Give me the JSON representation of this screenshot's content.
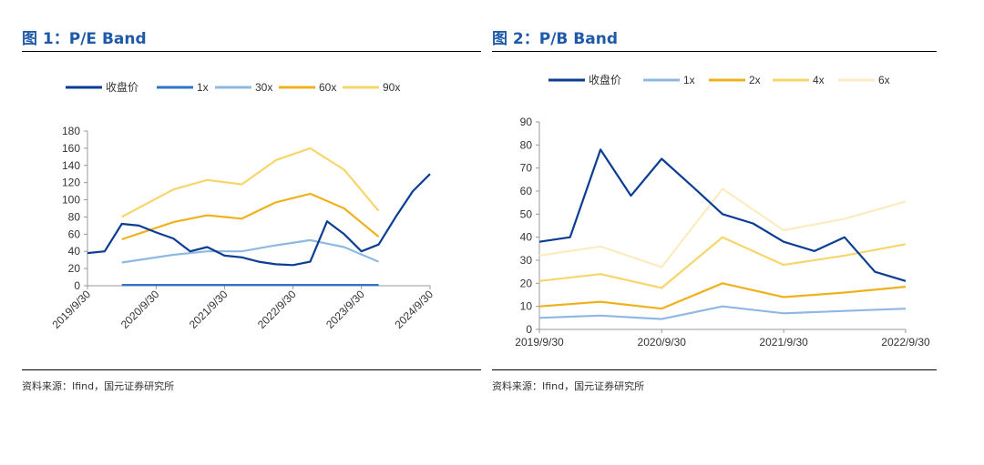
{
  "colors": {
    "title": "#1f5aa8",
    "close": "#0b3d91",
    "m1": "#2e75c4",
    "m2": "#f0b11e",
    "m30": "#8fb8e2",
    "m60": "#f0b11e",
    "m90": "#f7d56a",
    "pb4": "#f7d56a",
    "pb6": "#fbecc0"
  },
  "left": {
    "title": "图 1：P/E Band",
    "source": "资料来源：Ifind，国元证券研究所"
  },
  "right": {
    "title": "图 2：P/B Band",
    "source": "资料来源：Ifind，国元证券研究所"
  },
  "chart_data": [
    {
      "type": "line",
      "title": "P/E Band",
      "x_ticks": [
        "2019/9/30",
        "2020/9/30",
        "2021/9/30",
        "2022/9/30",
        "2023/9/30",
        "2024/9/30"
      ],
      "ylim": [
        0,
        180
      ],
      "y_ticks": [
        0,
        20,
        40,
        60,
        80,
        100,
        120,
        140,
        160,
        180
      ],
      "legend_position": "top",
      "series": [
        {
          "name": "收盘价",
          "x": [
            "2019/9/30",
            "2019/12/31",
            "2020/3/31",
            "2020/6/30",
            "2020/9/30",
            "2020/12/31",
            "2021/3/31",
            "2021/6/30",
            "2021/9/30",
            "2021/12/31",
            "2022/3/31",
            "2022/6/30",
            "2022/9/30",
            "2022/12/31",
            "2023/3/31",
            "2023/6/30",
            "2023/9/30",
            "2023/12/31",
            "2024/3/31",
            "2024/6/30",
            "2024/9/30"
          ],
          "values": [
            38,
            40,
            72,
            70,
            62,
            55,
            40,
            45,
            35,
            33,
            28,
            25,
            24,
            28,
            75,
            60,
            40,
            48,
            80,
            110,
            130
          ]
        },
        {
          "name": "1x",
          "x": [
            "2020/3/31",
            "2023/12/31"
          ],
          "values": [
            1,
            1
          ]
        },
        {
          "name": "30x",
          "x": [
            "2020/3/31",
            "2020/12/31",
            "2021/6/30",
            "2021/12/31",
            "2022/6/30",
            "2022/12/31",
            "2023/6/30",
            "2023/12/31"
          ],
          "values": [
            27,
            36,
            40,
            40,
            47,
            53,
            45,
            28
          ]
        },
        {
          "name": "60x",
          "x": [
            "2020/3/31",
            "2020/12/31",
            "2021/6/30",
            "2021/12/31",
            "2022/6/30",
            "2022/12/31",
            "2023/6/30",
            "2023/12/31"
          ],
          "values": [
            54,
            74,
            82,
            78,
            97,
            107,
            90,
            57
          ]
        },
        {
          "name": "90x",
          "x": [
            "2020/3/31",
            "2020/12/31",
            "2021/6/30",
            "2021/12/31",
            "2022/6/30",
            "2022/12/31",
            "2023/6/30",
            "2023/12/31"
          ],
          "values": [
            80,
            112,
            123,
            118,
            146,
            160,
            135,
            87
          ]
        }
      ]
    },
    {
      "type": "line",
      "title": "P/B Band",
      "x_ticks": [
        "2019/9/30",
        "2020/9/30",
        "2021/9/30",
        "2022/9/30"
      ],
      "ylim": [
        0,
        90
      ],
      "y_ticks": [
        0,
        10,
        20,
        30,
        40,
        50,
        60,
        70,
        80,
        90
      ],
      "legend_position": "top",
      "series": [
        {
          "name": "收盘价",
          "x": [
            "2019/9/30",
            "2019/12/31",
            "2020/3/31",
            "2020/6/30",
            "2020/9/30",
            "2020/12/31",
            "2021/3/31",
            "2021/6/30",
            "2021/9/30",
            "2021/12/31",
            "2022/3/31",
            "2022/6/30",
            "2022/9/30"
          ],
          "values": [
            38,
            40,
            78,
            58,
            74,
            62,
            50,
            46,
            38,
            34,
            40,
            25,
            21
          ]
        },
        {
          "name": "1x",
          "x": [
            "2019/9/30",
            "2020/3/31",
            "2020/9/30",
            "2021/3/31",
            "2021/9/30",
            "2022/3/31",
            "2022/9/30"
          ],
          "values": [
            5,
            6,
            4.5,
            10,
            7,
            8,
            9
          ]
        },
        {
          "name": "2x",
          "x": [
            "2019/9/30",
            "2020/3/31",
            "2020/9/30",
            "2021/3/31",
            "2021/9/30",
            "2022/3/31",
            "2022/9/30"
          ],
          "values": [
            10,
            12,
            9,
            20,
            14,
            16,
            18.5
          ]
        },
        {
          "name": "4x",
          "x": [
            "2019/9/30",
            "2020/3/31",
            "2020/9/30",
            "2021/3/31",
            "2021/9/30",
            "2022/3/31",
            "2022/9/30"
          ],
          "values": [
            21,
            24,
            18,
            40,
            28,
            32,
            37
          ]
        },
        {
          "name": "6x",
          "x": [
            "2019/9/30",
            "2020/3/31",
            "2020/9/30",
            "2021/3/31",
            "2021/9/30",
            "2022/3/31",
            "2022/9/30"
          ],
          "values": [
            32,
            36,
            27,
            61,
            43,
            48,
            55.5
          ]
        }
      ]
    }
  ]
}
